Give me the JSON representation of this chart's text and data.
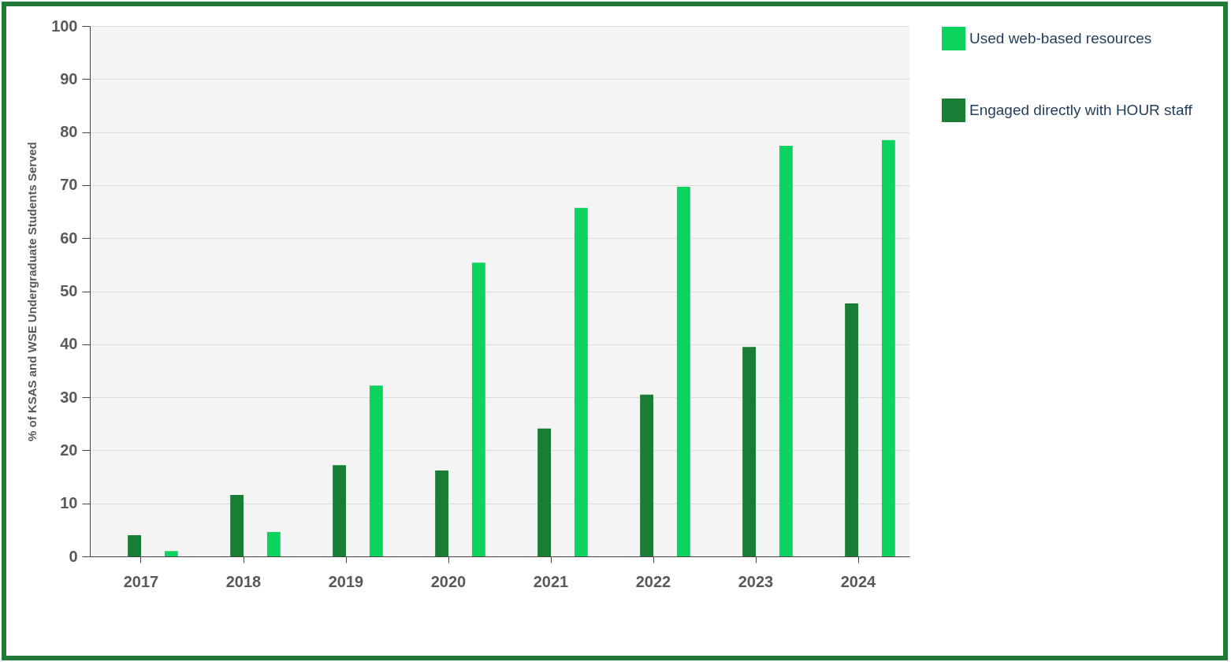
{
  "chart_data": {
    "type": "bar",
    "ylabel": "% of KSAS and WSE Undergraduate Students Served",
    "categories": [
      "2017",
      "2018",
      "2019",
      "2020",
      "2021",
      "2022",
      "2023",
      "2024"
    ],
    "series": [
      {
        "name": "Engaged directly with HOUR staff",
        "color": "#1a7d36",
        "values": [
          4,
          11.6,
          17.2,
          16.2,
          24.1,
          30.5,
          39.5,
          47.7
        ]
      },
      {
        "name": "Used web-based resources",
        "color": "#0cd35e",
        "values": [
          1,
          4.6,
          32.2,
          55.4,
          65.7,
          69.7,
          77.4,
          78.5
        ]
      }
    ],
    "ylim": [
      0,
      100
    ],
    "yticks": [
      0,
      10,
      20,
      30,
      40,
      50,
      60,
      70,
      80,
      90,
      100
    ],
    "grid": "y",
    "legend": "right"
  }
}
